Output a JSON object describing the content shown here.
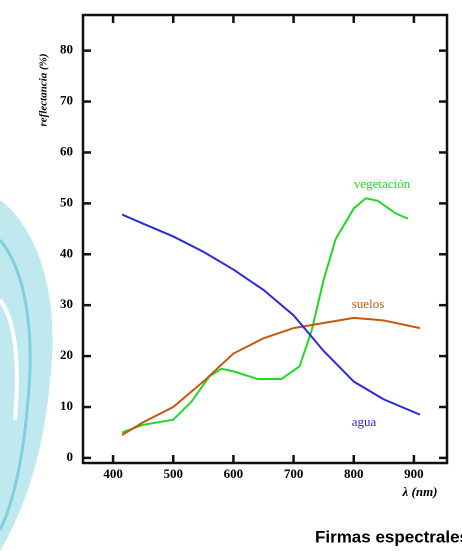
{
  "chart_data": {
    "type": "line",
    "title": "Firmas espectrales",
    "y_label": "reflectancia (%)",
    "x_label": "λ (nm)",
    "xlim": [
      350,
      955
    ],
    "ylim": [
      -1,
      87
    ],
    "xticks": [
      400,
      500,
      600,
      700,
      800,
      900
    ],
    "yticks": [
      0,
      10,
      20,
      30,
      40,
      50,
      60,
      70,
      80
    ],
    "series": [
      {
        "name": "vegetación",
        "color": "#22d822",
        "x": [
          415,
          450,
          500,
          530,
          560,
          580,
          600,
          640,
          680,
          710,
          730,
          750,
          770,
          800,
          820,
          840,
          870,
          890
        ],
        "values": [
          5,
          6.5,
          7.5,
          11,
          16,
          17.5,
          17,
          15.5,
          15.5,
          18,
          25,
          35,
          43,
          49,
          51,
          50.5,
          48,
          47
        ]
      },
      {
        "name": "suelos",
        "color": "#c8560f",
        "x": [
          415,
          450,
          500,
          550,
          600,
          650,
          700,
          750,
          800,
          850,
          910
        ],
        "values": [
          4.5,
          7,
          10,
          15,
          20.5,
          23.5,
          25.5,
          26.5,
          27.5,
          27,
          25.5
        ]
      },
      {
        "name": "agua",
        "color": "#2a2adb",
        "x": [
          415,
          450,
          500,
          550,
          600,
          650,
          700,
          750,
          800,
          850,
          910
        ],
        "values": [
          47.8,
          46,
          43.5,
          40.5,
          37,
          33,
          28,
          21,
          15,
          11.5,
          8.5
        ]
      }
    ]
  }
}
